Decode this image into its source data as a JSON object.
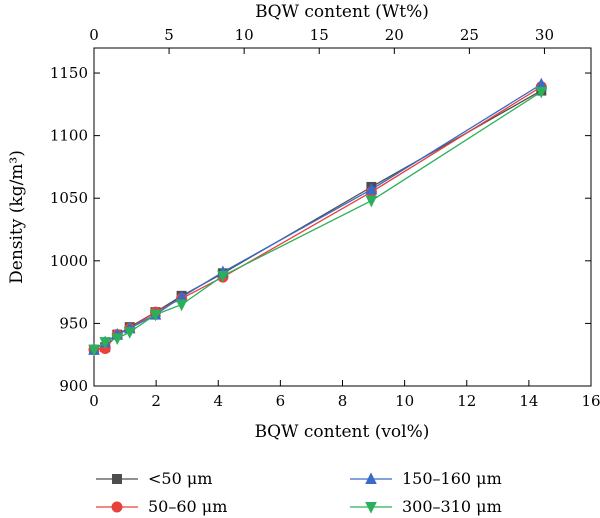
{
  "chart_data": {
    "type": "line",
    "title": "",
    "xlabel": "BQW content (vol%)",
    "x2label": "BQW content (Wt%)",
    "ylabel": "Density (kg/m³)",
    "xlim": [
      0,
      16
    ],
    "x2lim": [
      0,
      33.1
    ],
    "ylim": [
      900,
      1170
    ],
    "x_ticks": [
      "0",
      "2",
      "4",
      "6",
      "8",
      "10",
      "12",
      "14",
      "16"
    ],
    "x2_ticks": [
      "0",
      "5",
      "10",
      "15",
      "20",
      "25",
      "30"
    ],
    "y_ticks": [
      "900",
      "950",
      "1000",
      "1050",
      "1100",
      "1150"
    ],
    "grid": false,
    "legend_position": "bottom",
    "series": [
      {
        "name": "<50 μm",
        "color": "#4d4d4d",
        "marker": "square",
        "points": [
          [
            0,
            929
          ],
          [
            0.36,
            931
          ],
          [
            0.75,
            941
          ],
          [
            1.15,
            947
          ],
          [
            1.98,
            959
          ],
          [
            2.82,
            972
          ],
          [
            4.15,
            990
          ],
          [
            8.93,
            1059
          ],
          [
            14.4,
            1136
          ]
        ]
      },
      {
        "name": "50–60 μm",
        "color": "#e8403a",
        "marker": "circle",
        "points": [
          [
            0,
            929
          ],
          [
            0.36,
            930
          ],
          [
            0.75,
            941
          ],
          [
            1.15,
            946
          ],
          [
            1.98,
            959
          ],
          [
            2.82,
            970
          ],
          [
            4.15,
            987
          ],
          [
            8.93,
            1055
          ],
          [
            14.4,
            1139
          ]
        ]
      },
      {
        "name": "150–160 μm",
        "color": "#3a6bc8",
        "marker": "triangle-up",
        "points": [
          [
            0,
            929
          ],
          [
            0.36,
            935
          ],
          [
            0.75,
            941
          ],
          [
            1.15,
            946
          ],
          [
            1.98,
            957
          ],
          [
            2.82,
            971
          ],
          [
            4.15,
            991
          ],
          [
            8.93,
            1057
          ],
          [
            14.4,
            1141
          ]
        ]
      },
      {
        "name": "300–310 μm",
        "color": "#2ab05a",
        "marker": "triangle-down",
        "points": [
          [
            0,
            929
          ],
          [
            0.36,
            935
          ],
          [
            0.75,
            938
          ],
          [
            1.15,
            943
          ],
          [
            1.98,
            957
          ],
          [
            2.82,
            965
          ],
          [
            4.15,
            988
          ],
          [
            8.93,
            1048
          ],
          [
            14.4,
            1135
          ]
        ]
      }
    ]
  }
}
